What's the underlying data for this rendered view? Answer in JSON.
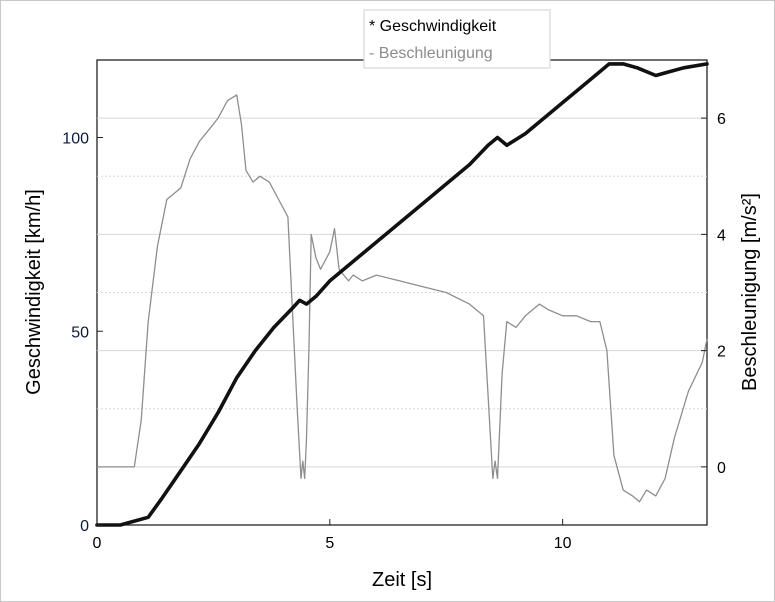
{
  "chart_data": {
    "type": "line",
    "xlabel": "Zeit [s]",
    "ylabel_left": "Geschwindigkeit [km/h]",
    "ylabel_right": "Beschleunigung [m/s²]",
    "xlim": [
      0,
      13.1
    ],
    "ylim_left": [
      0,
      120
    ],
    "ylim_right": [
      -1,
      7
    ],
    "xticks": [
      "0",
      "5",
      "10"
    ],
    "yticks_left": [
      "0",
      "50",
      "100"
    ],
    "yticks_right": [
      "0",
      "2",
      "4",
      "6"
    ],
    "grid": "horizontal dotted at each right-axis unit",
    "legend": {
      "placement": "top-center",
      "entries": [
        "* Geschwindigkeit",
        "- Beschleunigung"
      ]
    },
    "colors": {
      "speed": "#111111",
      "acceleration": "#8e8e8e",
      "grid": "#d8d8d8"
    },
    "series": [
      {
        "name": "Geschwindigkeit",
        "axis": "left",
        "x": [
          0,
          0.5,
          1.1,
          1.4,
          1.8,
          2.2,
          2.6,
          3.0,
          3.4,
          3.8,
          4.2,
          4.35,
          4.5,
          4.7,
          5.0,
          5.5,
          6.0,
          6.5,
          7.0,
          7.5,
          8.0,
          8.4,
          8.6,
          8.8,
          9.2,
          9.6,
          10.0,
          10.4,
          10.8,
          11.0,
          11.3,
          11.6,
          12.0,
          12.3,
          12.6,
          13.1
        ],
        "y": [
          0,
          0,
          2,
          7,
          14,
          21,
          29,
          38,
          45,
          51,
          56,
          58,
          57,
          59,
          63,
          68,
          73,
          78,
          83,
          88,
          93,
          98,
          100,
          98,
          101,
          105,
          109,
          113,
          117,
          119,
          119,
          118,
          116,
          117,
          118,
          119
        ]
      },
      {
        "name": "Beschleunigung",
        "axis": "right",
        "x": [
          0,
          0.8,
          0.95,
          1.1,
          1.3,
          1.5,
          1.65,
          1.8,
          2.0,
          2.2,
          2.4,
          2.6,
          2.8,
          3.0,
          3.1,
          3.2,
          3.35,
          3.5,
          3.7,
          3.9,
          4.1,
          4.3,
          4.38,
          4.42,
          4.46,
          4.5,
          4.55,
          4.6,
          4.7,
          4.8,
          5.0,
          5.1,
          5.2,
          5.3,
          5.4,
          5.5,
          5.7,
          6.0,
          6.5,
          7.0,
          7.5,
          8.0,
          8.3,
          8.45,
          8.5,
          8.55,
          8.6,
          8.7,
          8.8,
          9.0,
          9.2,
          9.5,
          9.7,
          10.0,
          10.3,
          10.6,
          10.8,
          10.95,
          11.1,
          11.3,
          11.5,
          11.65,
          11.8,
          12.0,
          12.2,
          12.4,
          12.7,
          13.0,
          13.1
        ],
        "y": [
          0,
          0,
          0.8,
          2.5,
          3.8,
          4.6,
          4.7,
          4.8,
          5.3,
          5.6,
          5.8,
          6.0,
          6.3,
          6.4,
          5.9,
          5.1,
          4.9,
          5.0,
          4.9,
          4.6,
          4.3,
          1.0,
          -0.2,
          0.1,
          -0.2,
          0.5,
          2.0,
          4.0,
          3.6,
          3.4,
          3.7,
          4.1,
          3.4,
          3.3,
          3.2,
          3.3,
          3.2,
          3.3,
          3.2,
          3.1,
          3.0,
          2.8,
          2.6,
          0.5,
          -0.2,
          0.1,
          -0.2,
          1.6,
          2.5,
          2.4,
          2.6,
          2.8,
          2.7,
          2.6,
          2.6,
          2.5,
          2.5,
          2.0,
          0.2,
          -0.4,
          -0.5,
          -0.6,
          -0.4,
          -0.5,
          -0.2,
          0.5,
          1.3,
          1.8,
          2.2
        ]
      }
    ]
  }
}
